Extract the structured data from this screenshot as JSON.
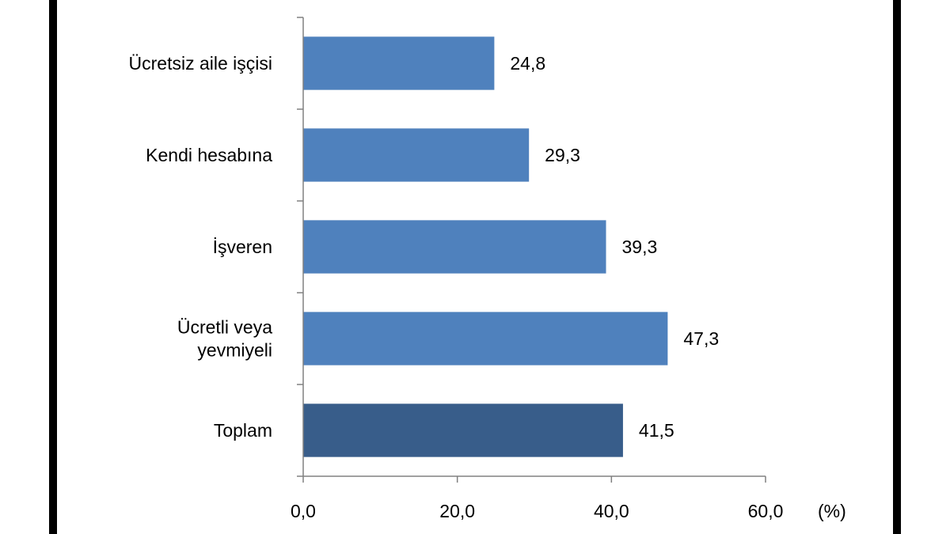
{
  "chart_data": {
    "type": "bar",
    "orientation": "horizontal",
    "categories": [
      [
        "Ücretsiz aile işçisi"
      ],
      [
        "Kendi hesabına"
      ],
      [
        "İşveren"
      ],
      [
        "Ücretli veya",
        "yevmiyeli"
      ],
      [
        "Toplam"
      ]
    ],
    "values": [
      24.8,
      29.3,
      39.3,
      47.3,
      41.5
    ],
    "value_labels": [
      "24,8",
      "29,3",
      "39,3",
      "47,3",
      "41,5"
    ],
    "xticks": [
      "0,0",
      "20,0",
      "40,0",
      "60,0"
    ],
    "xtick_values": [
      0,
      20,
      40,
      60
    ],
    "xlim": [
      0,
      60
    ],
    "unit": "(%)",
    "colors": {
      "bar": "#4f81bd",
      "highlight": "#385d8a",
      "axis": "#808080"
    },
    "highlight_category_index": 4,
    "grid": false,
    "legend": "none"
  }
}
